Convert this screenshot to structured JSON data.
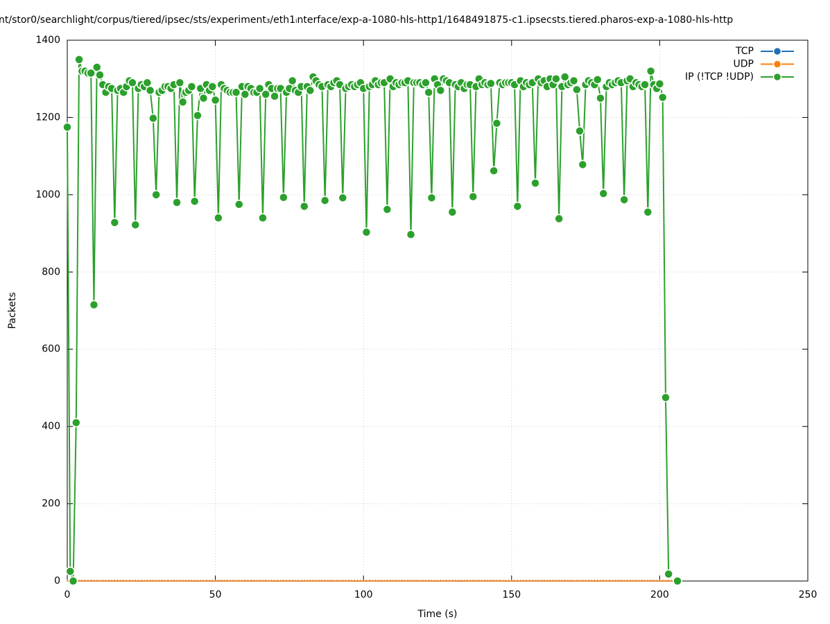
{
  "chart_data": {
    "type": "line",
    "title": "nt/stor0/searchlight/corpus/tiered/ipsec/sts/experiment₃/eth1ᵢnterface/exp-a-1080-hls-http1/1648491875-c1.ipsecsts.tiered.pharos-exp-a-1080-hls-http",
    "x_label": "Time (s)",
    "y_label": "Packets",
    "xlim": [
      0,
      250
    ],
    "xticks": [
      0,
      50,
      100,
      150,
      200,
      250
    ],
    "ylim": [
      0,
      1400
    ],
    "yticks": [
      0,
      200,
      400,
      600,
      800,
      1000,
      1200,
      1400
    ],
    "grid": true,
    "legend": "top-right",
    "x": [
      0,
      1,
      2,
      3,
      4,
      5,
      6,
      7,
      8,
      9,
      10,
      11,
      12,
      13,
      14,
      15,
      16,
      17,
      18,
      19,
      20,
      21,
      22,
      23,
      24,
      25,
      26,
      27,
      28,
      29,
      30,
      31,
      32,
      33,
      34,
      35,
      36,
      37,
      38,
      39,
      40,
      41,
      42,
      43,
      44,
      45,
      46,
      47,
      48,
      49,
      50,
      51,
      52,
      53,
      54,
      55,
      56,
      57,
      58,
      59,
      60,
      61,
      62,
      63,
      64,
      65,
      66,
      67,
      68,
      69,
      70,
      71,
      72,
      73,
      74,
      75,
      76,
      77,
      78,
      79,
      80,
      81,
      82,
      83,
      84,
      85,
      86,
      87,
      88,
      89,
      90,
      91,
      92,
      93,
      94,
      95,
      96,
      97,
      98,
      99,
      100,
      101,
      102,
      103,
      104,
      105,
      106,
      107,
      108,
      109,
      110,
      111,
      112,
      113,
      114,
      115,
      116,
      117,
      118,
      119,
      120,
      121,
      122,
      123,
      124,
      125,
      126,
      127,
      128,
      129,
      130,
      131,
      132,
      133,
      134,
      135,
      136,
      137,
      138,
      139,
      140,
      141,
      142,
      143,
      144,
      145,
      146,
      147,
      148,
      149,
      150,
      151,
      152,
      153,
      154,
      155,
      156,
      157,
      158,
      159,
      160,
      161,
      162,
      163,
      164,
      165,
      166,
      167,
      168,
      169,
      170,
      171,
      172,
      173,
      174,
      175,
      176,
      177,
      178,
      179,
      180,
      181,
      182,
      183,
      184,
      185,
      186,
      187,
      188,
      189,
      190,
      191,
      192,
      193,
      194,
      195,
      196,
      197,
      198,
      199,
      200,
      201,
      202,
      203,
      204,
      205,
      206
    ],
    "series": [
      {
        "name": "TCP",
        "color": "#1f6fb5",
        "values": [
          0,
          0,
          0,
          0,
          0,
          0,
          0,
          0,
          0,
          0,
          0,
          0,
          0,
          0,
          0,
          0,
          0,
          0,
          0,
          0,
          0,
          0,
          0,
          0,
          0,
          0,
          0,
          0,
          0,
          0,
          0,
          0,
          0,
          0,
          0,
          0,
          0,
          0,
          0,
          0,
          0,
          0,
          0,
          0,
          0,
          0,
          0,
          0,
          0,
          0,
          0,
          0,
          0,
          0,
          0,
          0,
          0,
          0,
          0,
          0,
          0,
          0,
          0,
          0,
          0,
          0,
          0,
          0,
          0,
          0,
          0,
          0,
          0,
          0,
          0,
          0,
          0,
          0,
          0,
          0,
          0,
          0,
          0,
          0,
          0,
          0,
          0,
          0,
          0,
          0,
          0,
          0,
          0,
          0,
          0,
          0,
          0,
          0,
          0,
          0,
          0,
          0,
          0,
          0,
          0,
          0,
          0,
          0,
          0,
          0,
          0,
          0,
          0,
          0,
          0,
          0,
          0,
          0,
          0,
          0,
          0,
          0,
          0,
          0,
          0,
          0,
          0,
          0,
          0,
          0,
          0,
          0,
          0,
          0,
          0,
          0,
          0,
          0,
          0,
          0,
          0,
          0,
          0,
          0,
          0,
          0,
          0,
          0,
          0,
          0,
          0,
          0,
          0,
          0,
          0,
          0,
          0,
          0,
          0,
          0,
          0,
          0,
          0,
          0,
          0,
          0,
          0,
          0,
          0,
          0,
          0,
          0,
          0,
          0,
          0,
          0,
          0,
          0,
          0,
          0,
          0,
          0,
          0,
          0,
          0,
          0,
          0,
          0,
          0,
          0,
          0,
          0,
          0,
          0,
          0,
          0,
          0,
          0,
          0,
          0,
          0,
          0,
          0,
          0,
          0,
          0,
          0
        ]
      },
      {
        "name": "UDP",
        "color": "#ff7f0e",
        "values": [
          0,
          0,
          0,
          0,
          0,
          0,
          0,
          0,
          0,
          0,
          0,
          0,
          0,
          0,
          0,
          0,
          0,
          0,
          0,
          0,
          0,
          0,
          0,
          0,
          0,
          0,
          0,
          0,
          0,
          0,
          0,
          0,
          0,
          0,
          0,
          0,
          0,
          0,
          0,
          0,
          0,
          0,
          0,
          0,
          0,
          0,
          0,
          0,
          0,
          0,
          0,
          0,
          0,
          0,
          0,
          0,
          0,
          0,
          0,
          0,
          0,
          0,
          0,
          0,
          0,
          0,
          0,
          0,
          0,
          0,
          0,
          0,
          0,
          0,
          0,
          0,
          0,
          0,
          0,
          0,
          0,
          0,
          0,
          0,
          0,
          0,
          0,
          0,
          0,
          0,
          0,
          0,
          0,
          0,
          0,
          0,
          0,
          0,
          0,
          0,
          0,
          0,
          0,
          0,
          0,
          0,
          0,
          0,
          0,
          0,
          0,
          0,
          0,
          0,
          0,
          0,
          0,
          0,
          0,
          0,
          0,
          0,
          0,
          0,
          0,
          0,
          0,
          0,
          0,
          0,
          0,
          0,
          0,
          0,
          0,
          0,
          0,
          0,
          0,
          0,
          0,
          0,
          0,
          0,
          0,
          0,
          0,
          0,
          0,
          0,
          0,
          0,
          0,
          0,
          0,
          0,
          0,
          0,
          0,
          0,
          0,
          0,
          0,
          0,
          0,
          0,
          0,
          0,
          0,
          0,
          0,
          0,
          0,
          0,
          0,
          0,
          0,
          0,
          0,
          0,
          0,
          0,
          0,
          0,
          0,
          0,
          0,
          0,
          0,
          0,
          0,
          0,
          0,
          0,
          0,
          0,
          0,
          0,
          0,
          0,
          0,
          0,
          0,
          0,
          0,
          0,
          0
        ]
      },
      {
        "name": "IP (!TCP  !UDP)",
        "color": "#2ca02c",
        "values": [
          1175,
          25,
          0,
          410,
          1350,
          1320,
          1320,
          1315,
          1315,
          715,
          1330,
          1310,
          1285,
          1265,
          1280,
          1275,
          928,
          1270,
          1275,
          1265,
          1280,
          1295,
          1290,
          922,
          1275,
          1285,
          1280,
          1290,
          1270,
          1198,
          1000,
          1265,
          1270,
          1280,
          1280,
          1275,
          1285,
          980,
          1290,
          1240,
          1265,
          1270,
          1280,
          983,
          1205,
          1275,
          1250,
          1285,
          1270,
          1280,
          1245,
          940,
          1285,
          1275,
          1270,
          1265,
          1265,
          1265,
          975,
          1280,
          1260,
          1280,
          1275,
          1265,
          1265,
          1275,
          940,
          1260,
          1285,
          1275,
          1255,
          1275,
          1275,
          993,
          1265,
          1275,
          1295,
          1270,
          1265,
          1280,
          970,
          1280,
          1270,
          1305,
          1295,
          1285,
          1280,
          985,
          1285,
          1280,
          1290,
          1295,
          1285,
          992,
          1275,
          1280,
          1285,
          1280,
          1285,
          1290,
          1275,
          903,
          1280,
          1285,
          1295,
          1285,
          1290,
          1290,
          962,
          1300,
          1280,
          1290,
          1285,
          1290,
          1290,
          1295,
          897,
          1290,
          1290,
          1290,
          1285,
          1290,
          1265,
          992,
          1300,
          1285,
          1270,
          1300,
          1295,
          1290,
          955,
          1285,
          1280,
          1290,
          1275,
          1285,
          1285,
          995,
          1280,
          1300,
          1285,
          1290,
          1285,
          1288,
          1062,
          1185,
          1290,
          1285,
          1290,
          1290,
          1290,
          1285,
          970,
          1295,
          1280,
          1290,
          1285,
          1290,
          1030,
          1300,
          1290,
          1295,
          1280,
          1300,
          1285,
          1300,
          938,
          1280,
          1305,
          1285,
          1290,
          1295,
          1272,
          1165,
          1078,
          1285,
          1295,
          1290,
          1285,
          1298,
          1250,
          1003,
          1280,
          1290,
          1285,
          1290,
          1295,
          1290,
          987,
          1295,
          1300,
          1280,
          1290,
          1285,
          1280,
          1285,
          955,
          1320,
          1285,
          1275,
          1287,
          1252,
          475,
          18,
          null,
          null,
          0
        ]
      }
    ]
  }
}
